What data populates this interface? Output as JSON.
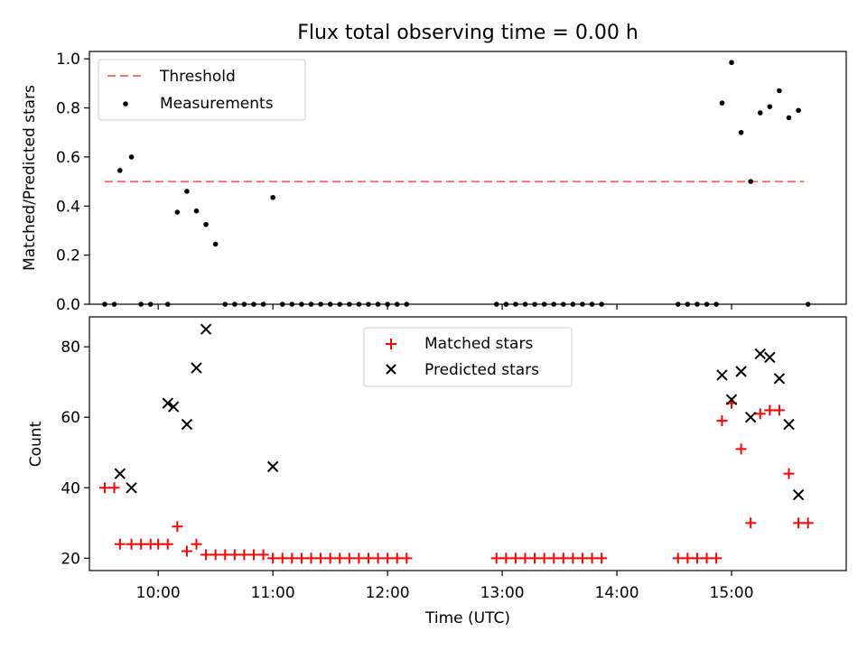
{
  "chart_data": [
    {
      "type": "scatter",
      "title": "Flux total observing time = 0.00 h",
      "ylabel": "Matched/Predicted stars",
      "xlabel": "",
      "xlim": [
        "09:24",
        "16:00"
      ],
      "ylim": [
        0,
        1.03
      ],
      "yticks": [
        "0.0",
        "0.2",
        "0.4",
        "0.6",
        "0.8",
        "1.0"
      ],
      "xticks": [
        "10:00",
        "11:00",
        "12:00",
        "13:00",
        "14:00",
        "15:00"
      ],
      "legend_position": "upper-left",
      "threshold": {
        "name": "Threshold",
        "value": 0.5,
        "x_start": "09:32",
        "x_end": "15:38",
        "color": "#ff7070",
        "style": "dashed"
      },
      "series": [
        {
          "name": "Measurements",
          "marker": "dot",
          "color": "#000000",
          "x": [
            "09:32",
            "09:37",
            "09:40",
            "09:46",
            "09:51",
            "09:56",
            "10:05",
            "10:10",
            "10:15",
            "10:20",
            "10:25",
            "10:30",
            "10:35",
            "10:40",
            "10:45",
            "10:50",
            "10:55",
            "11:00",
            "11:05",
            "11:10",
            "11:15",
            "11:20",
            "11:25",
            "11:30",
            "11:35",
            "11:40",
            "11:45",
            "11:50",
            "11:55",
            "12:00",
            "12:05",
            "12:10",
            "12:57",
            "13:02",
            "13:07",
            "13:12",
            "13:17",
            "13:22",
            "13:27",
            "13:32",
            "13:37",
            "13:42",
            "13:47",
            "13:52",
            "14:32",
            "14:37",
            "14:42",
            "14:47",
            "14:52",
            "14:55",
            "15:00",
            "15:05",
            "15:10",
            "15:15",
            "15:20",
            "15:25",
            "15:30",
            "15:35",
            "15:40"
          ],
          "y": [
            0,
            0,
            0.545,
            0.6,
            0,
            0,
            0,
            0.375,
            0.46,
            0.38,
            0.325,
            0.245,
            0,
            0,
            0,
            0,
            0,
            0.435,
            0,
            0,
            0,
            0,
            0,
            0,
            0,
            0,
            0,
            0,
            0,
            0,
            0,
            0,
            0,
            0,
            0,
            0,
            0,
            0,
            0,
            0,
            0,
            0,
            0,
            0,
            0,
            0,
            0,
            0,
            0,
            0.82,
            0.985,
            0.7,
            0.5,
            0.78,
            0.805,
            0.87,
            0.76,
            0.79,
            0
          ]
        }
      ]
    },
    {
      "type": "scatter",
      "title": "",
      "ylabel": "Count",
      "xlabel": "Time (UTC)",
      "xlim": [
        "09:24",
        "16:00"
      ],
      "ylim": [
        16.5,
        88.5
      ],
      "yticks": [
        "20",
        "40",
        "60",
        "80"
      ],
      "xticks": [
        "10:00",
        "11:00",
        "12:00",
        "13:00",
        "14:00",
        "15:00"
      ],
      "legend_position": "upper-center",
      "series": [
        {
          "name": "Matched stars",
          "marker": "plus",
          "color": "#ff0000",
          "x": [
            "09:32",
            "09:37",
            "09:40",
            "09:46",
            "09:51",
            "09:56",
            "10:00",
            "10:05",
            "10:10",
            "10:15",
            "10:20",
            "10:25",
            "10:30",
            "10:35",
            "10:40",
            "10:45",
            "10:50",
            "10:55",
            "11:00",
            "11:05",
            "11:10",
            "11:15",
            "11:20",
            "11:25",
            "11:30",
            "11:35",
            "11:40",
            "11:45",
            "11:50",
            "11:55",
            "12:00",
            "12:05",
            "12:10",
            "12:57",
            "13:02",
            "13:07",
            "13:12",
            "13:17",
            "13:22",
            "13:27",
            "13:32",
            "13:37",
            "13:42",
            "13:47",
            "13:52",
            "14:32",
            "14:37",
            "14:42",
            "14:47",
            "14:52",
            "14:55",
            "15:00",
            "15:05",
            "15:10",
            "15:15",
            "15:20",
            "15:25",
            "15:30",
            "15:35",
            "15:40"
          ],
          "y": [
            40,
            40,
            24,
            24,
            24,
            24,
            24,
            24,
            29,
            22,
            24,
            21,
            21,
            21,
            21,
            21,
            21,
            21,
            20,
            20,
            20,
            20,
            20,
            20,
            20,
            20,
            20,
            20,
            20,
            20,
            20,
            20,
            20,
            20,
            20,
            20,
            20,
            20,
            20,
            20,
            20,
            20,
            20,
            20,
            20,
            20,
            20,
            20,
            20,
            20,
            59,
            64,
            51,
            30,
            61,
            62,
            62,
            44,
            30,
            30
          ]
        },
        {
          "name": "Predicted stars",
          "marker": "x",
          "color": "#000000",
          "x": [
            "09:40",
            "09:46",
            "10:05",
            "10:08",
            "10:15",
            "10:20",
            "10:25",
            "11:00",
            "14:55",
            "15:00",
            "15:05",
            "15:10",
            "15:15",
            "15:20",
            "15:25",
            "15:30",
            "15:35"
          ],
          "y": [
            44,
            40,
            64,
            63,
            58,
            74,
            85,
            46,
            72,
            65,
            73,
            60,
            78,
            77,
            71,
            58,
            38
          ]
        }
      ]
    }
  ]
}
